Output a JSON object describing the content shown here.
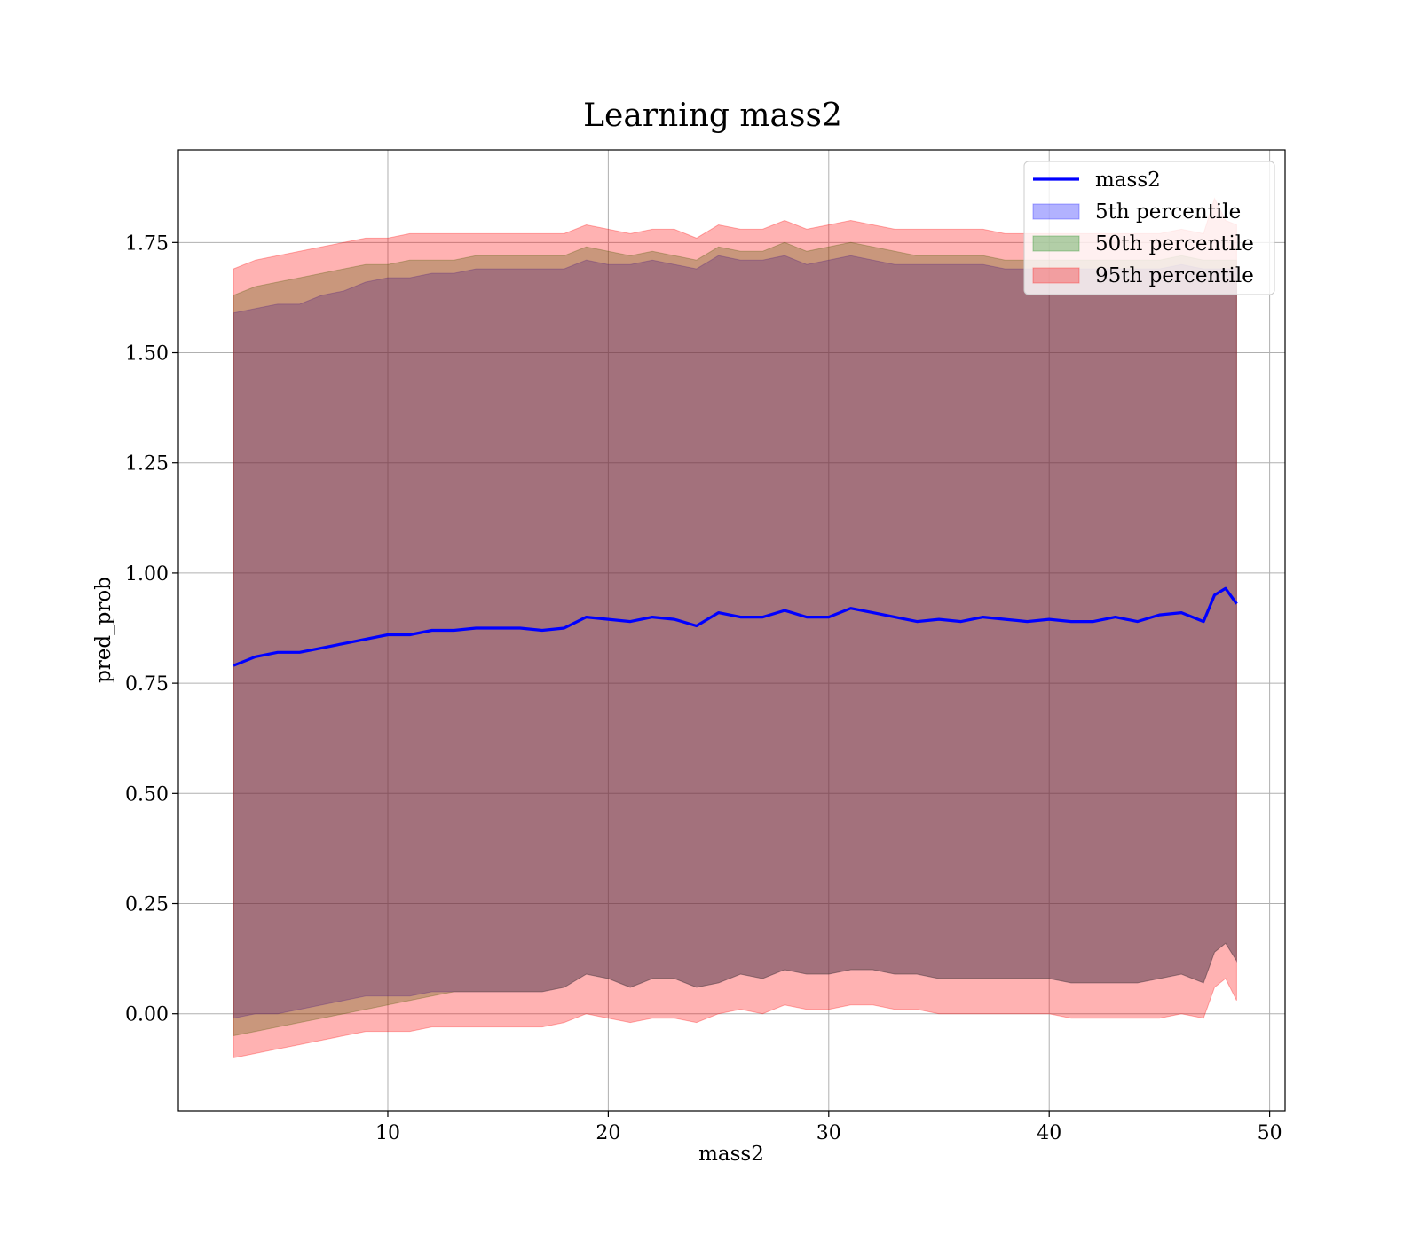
{
  "chart_data": {
    "type": "area",
    "title": "Learning mass2",
    "xlabel": "mass2",
    "ylabel": "pred_prob",
    "xlim": [
      0.5,
      50.7
    ],
    "ylim": [
      -0.22,
      1.96
    ],
    "xticks": [
      10,
      20,
      30,
      40,
      50
    ],
    "yticks": [
      0.0,
      0.25,
      0.5,
      0.75,
      1.0,
      1.25,
      1.5,
      1.75
    ],
    "xtick_labels": [
      "10",
      "20",
      "30",
      "40",
      "50"
    ],
    "ytick_labels": [
      "0.00",
      "0.25",
      "0.50",
      "0.75",
      "1.00",
      "1.25",
      "1.50",
      "1.75"
    ],
    "grid": true,
    "legend_position": "top-right",
    "x": [
      3,
      4,
      5,
      6,
      7,
      8,
      9,
      10,
      11,
      12,
      13,
      14,
      15,
      16,
      17,
      18,
      19,
      20,
      21,
      22,
      23,
      24,
      25,
      26,
      27,
      28,
      29,
      30,
      31,
      32,
      33,
      34,
      35,
      36,
      37,
      38,
      39,
      40,
      41,
      42,
      43,
      44,
      45,
      46,
      47,
      47.5,
      48,
      48.5
    ],
    "series": [
      {
        "name": "mass2",
        "kind": "line",
        "color": "#0000ff",
        "values": [
          0.79,
          0.81,
          0.82,
          0.82,
          0.83,
          0.84,
          0.85,
          0.86,
          0.86,
          0.87,
          0.87,
          0.875,
          0.875,
          0.875,
          0.87,
          0.875,
          0.9,
          0.895,
          0.89,
          0.9,
          0.895,
          0.88,
          0.91,
          0.9,
          0.9,
          0.915,
          0.9,
          0.9,
          0.92,
          0.91,
          0.9,
          0.89,
          0.895,
          0.89,
          0.9,
          0.895,
          0.89,
          0.895,
          0.89,
          0.89,
          0.9,
          0.89,
          0.905,
          0.91,
          0.89,
          0.95,
          0.965,
          0.93
        ]
      },
      {
        "name": "5th percentile",
        "kind": "band",
        "color": "#0000ff",
        "lower": [
          -0.01,
          0.0,
          0.0,
          0.01,
          0.02,
          0.03,
          0.04,
          0.04,
          0.04,
          0.05,
          0.05,
          0.05,
          0.05,
          0.05,
          0.05,
          0.06,
          0.09,
          0.08,
          0.06,
          0.08,
          0.08,
          0.06,
          0.07,
          0.09,
          0.08,
          0.1,
          0.09,
          0.09,
          0.1,
          0.1,
          0.09,
          0.09,
          0.08,
          0.08,
          0.08,
          0.08,
          0.08,
          0.08,
          0.07,
          0.07,
          0.07,
          0.07,
          0.08,
          0.09,
          0.07,
          0.14,
          0.16,
          0.12
        ],
        "upper": [
          1.59,
          1.6,
          1.61,
          1.61,
          1.63,
          1.64,
          1.66,
          1.67,
          1.67,
          1.68,
          1.68,
          1.69,
          1.69,
          1.69,
          1.69,
          1.69,
          1.71,
          1.7,
          1.7,
          1.71,
          1.7,
          1.69,
          1.72,
          1.71,
          1.71,
          1.72,
          1.7,
          1.71,
          1.72,
          1.71,
          1.7,
          1.7,
          1.7,
          1.7,
          1.7,
          1.69,
          1.69,
          1.69,
          1.69,
          1.69,
          1.69,
          1.69,
          1.69,
          1.7,
          1.69,
          1.69,
          1.69,
          1.69
        ]
      },
      {
        "name": "50th percentile",
        "kind": "band",
        "color": "#008000",
        "lower": [
          -0.05,
          -0.04,
          -0.03,
          -0.02,
          -0.01,
          0.0,
          0.01,
          0.02,
          0.03,
          0.04,
          0.05,
          0.05,
          0.05,
          0.05,
          0.05,
          0.06,
          0.09,
          0.08,
          0.06,
          0.08,
          0.08,
          0.06,
          0.07,
          0.09,
          0.08,
          0.1,
          0.09,
          0.09,
          0.1,
          0.1,
          0.09,
          0.09,
          0.08,
          0.08,
          0.08,
          0.08,
          0.08,
          0.08,
          0.07,
          0.07,
          0.07,
          0.07,
          0.08,
          0.09,
          0.07,
          0.14,
          0.16,
          0.12
        ],
        "upper": [
          1.63,
          1.65,
          1.66,
          1.67,
          1.68,
          1.69,
          1.7,
          1.7,
          1.71,
          1.71,
          1.71,
          1.72,
          1.72,
          1.72,
          1.72,
          1.72,
          1.74,
          1.73,
          1.72,
          1.73,
          1.72,
          1.71,
          1.74,
          1.73,
          1.73,
          1.75,
          1.73,
          1.74,
          1.75,
          1.74,
          1.73,
          1.72,
          1.72,
          1.72,
          1.72,
          1.71,
          1.71,
          1.71,
          1.71,
          1.71,
          1.71,
          1.71,
          1.71,
          1.72,
          1.71,
          1.71,
          1.71,
          1.71
        ]
      },
      {
        "name": "95th percentile",
        "kind": "band",
        "color": "#ff0000",
        "lower": [
          -0.1,
          -0.09,
          -0.08,
          -0.07,
          -0.06,
          -0.05,
          -0.04,
          -0.04,
          -0.04,
          -0.03,
          -0.03,
          -0.03,
          -0.03,
          -0.03,
          -0.03,
          -0.02,
          0.0,
          -0.01,
          -0.02,
          -0.01,
          -0.01,
          -0.02,
          0.0,
          0.01,
          0.0,
          0.02,
          0.01,
          0.01,
          0.02,
          0.02,
          0.01,
          0.01,
          0.0,
          0.0,
          0.0,
          0.0,
          0.0,
          0.0,
          -0.01,
          -0.01,
          -0.01,
          -0.01,
          -0.01,
          0.0,
          -0.01,
          0.06,
          0.08,
          0.03
        ],
        "upper": [
          1.69,
          1.71,
          1.72,
          1.73,
          1.74,
          1.75,
          1.76,
          1.76,
          1.77,
          1.77,
          1.77,
          1.77,
          1.77,
          1.77,
          1.77,
          1.77,
          1.79,
          1.78,
          1.77,
          1.78,
          1.78,
          1.76,
          1.79,
          1.78,
          1.78,
          1.8,
          1.78,
          1.79,
          1.8,
          1.79,
          1.78,
          1.78,
          1.78,
          1.78,
          1.78,
          1.77,
          1.77,
          1.77,
          1.77,
          1.77,
          1.77,
          1.77,
          1.77,
          1.78,
          1.77,
          1.85,
          1.8,
          1.79
        ]
      }
    ]
  }
}
